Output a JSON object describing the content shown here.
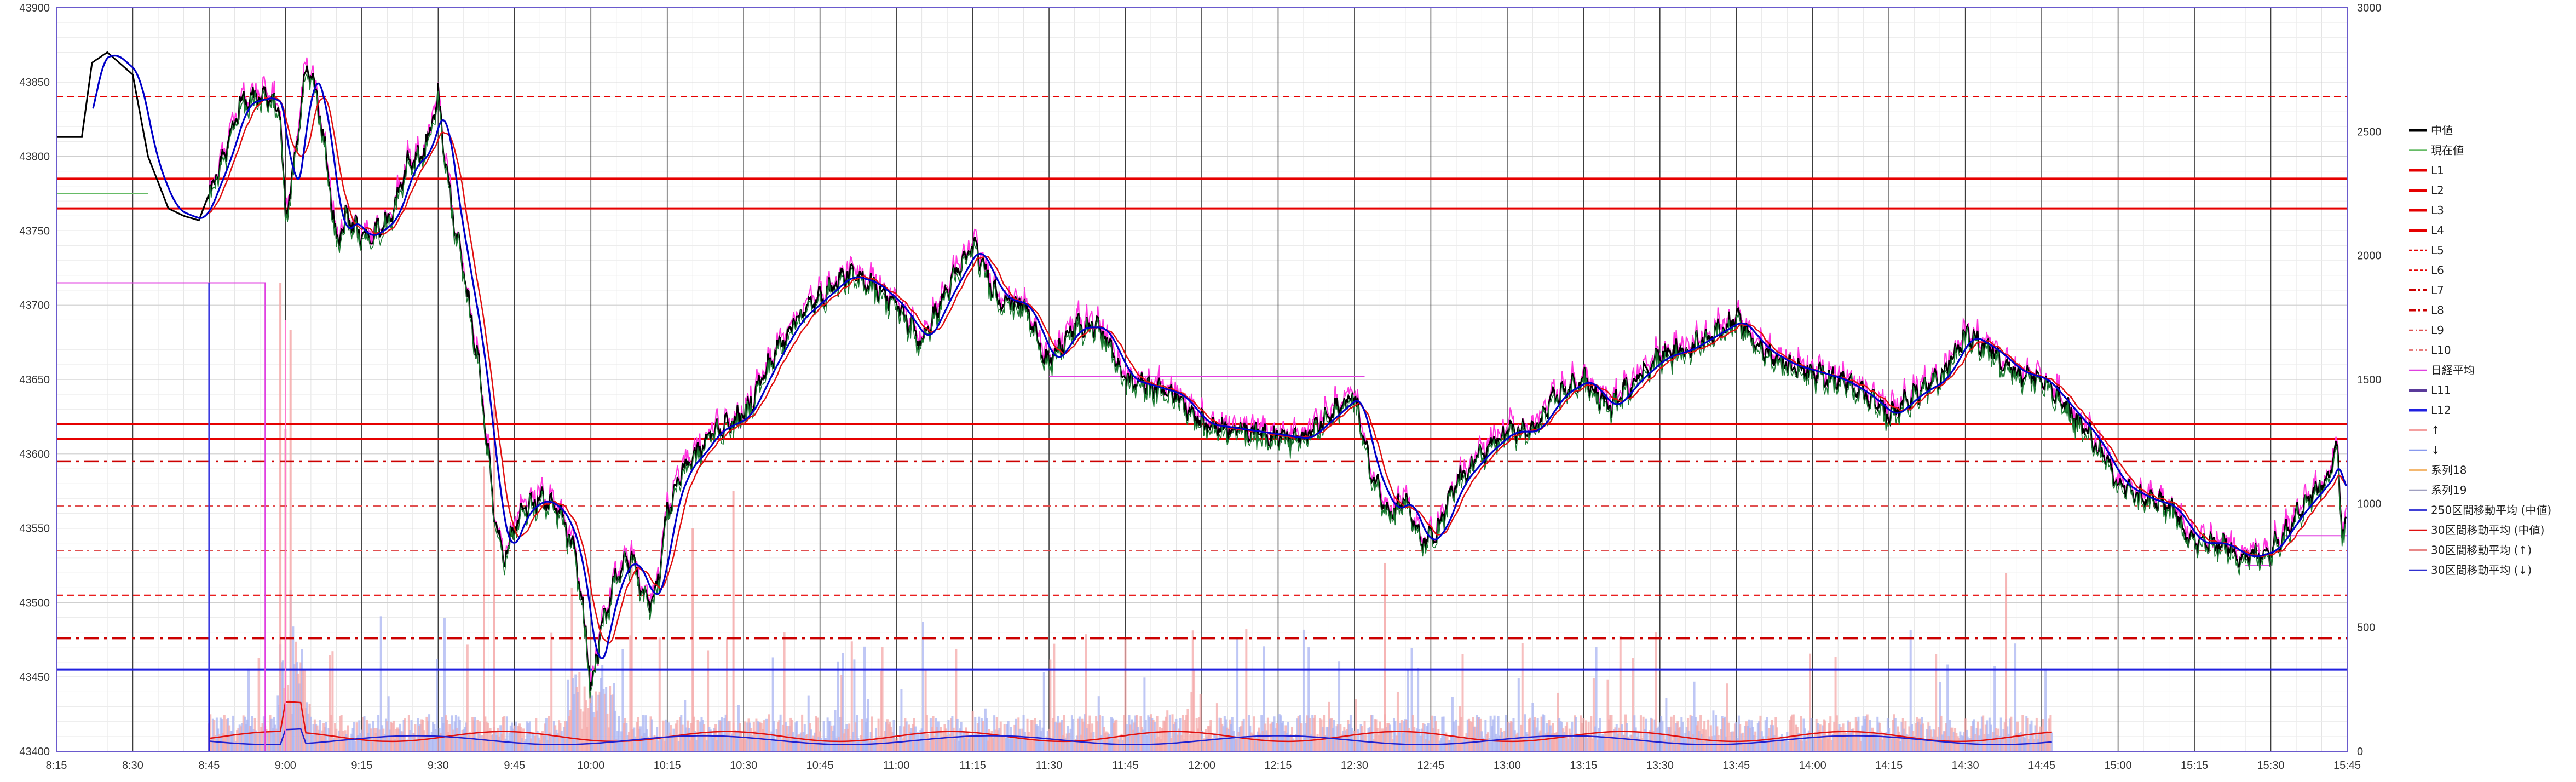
{
  "chart_data": {
    "type": "line",
    "title": "",
    "xlabel": "",
    "ylabel": "",
    "ylim": [
      43400,
      43900
    ],
    "y2lim": [
      0,
      3000
    ],
    "grid": true,
    "legend_position": "right",
    "x_ticks": [
      "8:15",
      "8:30",
      "8:45",
      "9:00",
      "9:15",
      "9:30",
      "9:45",
      "10:00",
      "10:15",
      "10:30",
      "10:45",
      "11:00",
      "11:15",
      "11:30",
      "11:45",
      "12:00",
      "12:15",
      "12:30",
      "12:45",
      "13:00",
      "13:15",
      "13:30",
      "13:45",
      "14:00",
      "14:15",
      "14:30",
      "14:45",
      "15:00",
      "15:15",
      "15:30",
      "15:45"
    ],
    "y_ticks": [
      43400,
      43450,
      43500,
      43550,
      43600,
      43650,
      43700,
      43750,
      43800,
      43850,
      43900
    ],
    "y2_ticks": [
      0,
      500,
      1000,
      1500,
      2000,
      2500,
      3000
    ],
    "horizontal_levels": [
      {
        "name": "L1",
        "value": 43785,
        "color": "#e60000",
        "style": "solid"
      },
      {
        "name": "L2",
        "value": 43765,
        "color": "#e60000",
        "style": "solid"
      },
      {
        "name": "L3",
        "value": 43620,
        "color": "#e60000",
        "style": "solid"
      },
      {
        "name": "L4",
        "value": 43610,
        "color": "#e60000",
        "style": "solid"
      },
      {
        "name": "L5",
        "value": 43840,
        "color": "#e60000",
        "style": "dash"
      },
      {
        "name": "L6",
        "value": 43505,
        "color": "#e60000",
        "style": "dash"
      },
      {
        "name": "L7",
        "value": 43595,
        "color": "#cc0000",
        "style": "dashdot"
      },
      {
        "name": "L8",
        "value": 43476,
        "color": "#cc0000",
        "style": "dashdot"
      },
      {
        "name": "L9",
        "value": 43565,
        "color": "#e05050",
        "style": "dashdot-thin"
      },
      {
        "name": "L10",
        "value": 43535,
        "color": "#e05050",
        "style": "dashdot-thin"
      },
      {
        "name": "L12",
        "value": 43455,
        "color": "#2020e0",
        "style": "solid"
      }
    ],
    "series": [
      {
        "name": "中値",
        "color": "#000000",
        "x": [
          "8:15",
          "8:20",
          "8:22",
          "8:25",
          "8:30",
          "8:33",
          "8:37",
          "8:40",
          "8:43",
          "8:45",
          "8:48",
          "8:51",
          "8:54",
          "8:57",
          "8:59",
          "9:00",
          "9:02",
          "9:04",
          "9:06",
          "9:08",
          "9:10",
          "9:12",
          "9:15",
          "9:18",
          "9:21",
          "9:24",
          "9:27",
          "9:30",
          "9:32",
          "9:35",
          "9:38",
          "9:41",
          "9:43",
          "9:46",
          "9:50",
          "9:54",
          "9:57",
          "9:59",
          "10:00",
          "10:02",
          "10:05",
          "10:08",
          "10:11",
          "10:13",
          "10:15",
          "10:18",
          "10:21",
          "10:24",
          "10:27",
          "10:30",
          "10:35",
          "10:40",
          "10:45",
          "10:50",
          "10:55",
          "11:00",
          "11:05",
          "11:10",
          "11:15",
          "11:20",
          "11:25",
          "11:30",
          "11:35",
          "11:40",
          "11:45",
          "11:50",
          "11:55",
          "12:00",
          "12:10",
          "12:20",
          "12:25",
          "12:30",
          "12:33",
          "12:37",
          "12:40",
          "12:43",
          "12:46",
          "12:50",
          "12:55",
          "13:00",
          "13:05",
          "13:10",
          "13:15",
          "13:20",
          "13:25",
          "13:30",
          "13:35",
          "13:40",
          "13:45",
          "13:50",
          "13:55",
          "14:00",
          "14:05",
          "14:10",
          "14:15",
          "14:20",
          "14:25",
          "14:30",
          "14:35",
          "14:40",
          "14:45",
          "14:50",
          "14:55",
          "15:00",
          "15:05",
          "15:10",
          "15:15",
          "15:20",
          "15:25",
          "15:30",
          "15:35",
          "15:40",
          "15:42",
          "15:43",
          "15:44",
          "15:45"
        ],
        "values": [
          43813,
          43813,
          43863,
          43870,
          43855,
          43800,
          43765,
          43760,
          43757,
          43775,
          43800,
          43835,
          43838,
          43840,
          43830,
          43755,
          43800,
          43860,
          43845,
          43800,
          43740,
          43760,
          43745,
          43750,
          43760,
          43795,
          43800,
          43840,
          43780,
          43720,
          43660,
          43560,
          43530,
          43560,
          43570,
          43560,
          43530,
          43480,
          43440,
          43480,
          43520,
          43530,
          43500,
          43510,
          43560,
          43590,
          43600,
          43615,
          43620,
          43625,
          43660,
          43690,
          43705,
          43720,
          43715,
          43700,
          43675,
          43710,
          43740,
          43705,
          43700,
          43660,
          43685,
          43685,
          43650,
          43645,
          43640,
          43620,
          43615,
          43610,
          43625,
          43640,
          43590,
          43560,
          43570,
          43540,
          43545,
          43580,
          43600,
          43615,
          43615,
          43640,
          43650,
          43630,
          43650,
          43665,
          43670,
          43680,
          43690,
          43670,
          43660,
          43655,
          43650,
          43640,
          43625,
          43640,
          43650,
          43680,
          43670,
          43655,
          43650,
          43630,
          43610,
          43580,
          43570,
          43565,
          43540,
          43540,
          43530,
          43535,
          43560,
          43580,
          43590,
          43605,
          43550,
          43555
        ]
      },
      {
        "name": "現在値",
        "color": "#66bb66"
      },
      {
        "name": "日経平均",
        "color": "#e040e0"
      },
      {
        "name": "L11",
        "color": "#5a3a9a"
      },
      {
        "name": "↑",
        "color": "#f08080"
      },
      {
        "name": "↓",
        "color": "#8899ee"
      },
      {
        "name": "系列18",
        "color": "#f0a040"
      },
      {
        "name": "系列19",
        "color": "#a0a0c0"
      },
      {
        "name": "250区間移動平均 (中値)",
        "color": "#0000c8"
      },
      {
        "name": "30区間移動平均 (中値)",
        "color": "#e01010"
      },
      {
        "name": "30区間移動平均 (↑)",
        "color": "#e06060"
      },
      {
        "name": "30区間移動平均 (↓)",
        "color": "#3030d0"
      }
    ]
  },
  "legend": [
    {
      "label": "中値",
      "color": "#000000",
      "style": "solid-thick"
    },
    {
      "label": "現在値",
      "color": "#66bb66",
      "style": "solid"
    },
    {
      "label": "L1",
      "color": "#e60000",
      "style": "solid-thick"
    },
    {
      "label": "L2",
      "color": "#e60000",
      "style": "solid-thick"
    },
    {
      "label": "L3",
      "color": "#e60000",
      "style": "solid-thick"
    },
    {
      "label": "L4",
      "color": "#e60000",
      "style": "solid-thick"
    },
    {
      "label": "L5",
      "color": "#e60000",
      "style": "dash"
    },
    {
      "label": "L6",
      "color": "#e60000",
      "style": "dash"
    },
    {
      "label": "L7",
      "color": "#cc0000",
      "style": "dashdot"
    },
    {
      "label": "L8",
      "color": "#cc0000",
      "style": "dashdot"
    },
    {
      "label": "L9",
      "color": "#e05050",
      "style": "dashdot-thin"
    },
    {
      "label": "L10",
      "color": "#e05050",
      "style": "dashdot-thin"
    },
    {
      "label": "日経平均",
      "color": "#e040e0",
      "style": "solid"
    },
    {
      "label": "L11",
      "color": "#5a3a9a",
      "style": "solid-thick"
    },
    {
      "label": "L12",
      "color": "#2020e0",
      "style": "solid-thick"
    },
    {
      "label": "↑",
      "color": "#f08080",
      "style": "solid"
    },
    {
      "label": "↓",
      "color": "#8899ee",
      "style": "solid"
    },
    {
      "label": "系列18",
      "color": "#f0a040",
      "style": "solid"
    },
    {
      "label": "系列19",
      "color": "#a0a0c0",
      "style": "solid"
    },
    {
      "label": "250区間移動平均 (中値)",
      "color": "#0000c8",
      "style": "solid"
    },
    {
      "label": "30区間移動平均 (中値)",
      "color": "#e01010",
      "style": "solid"
    },
    {
      "label": "30区間移動平均 (↑)",
      "color": "#e06060",
      "style": "solid"
    },
    {
      "label": "30区間移動平均 (↓)",
      "color": "#3030d0",
      "style": "solid"
    }
  ]
}
